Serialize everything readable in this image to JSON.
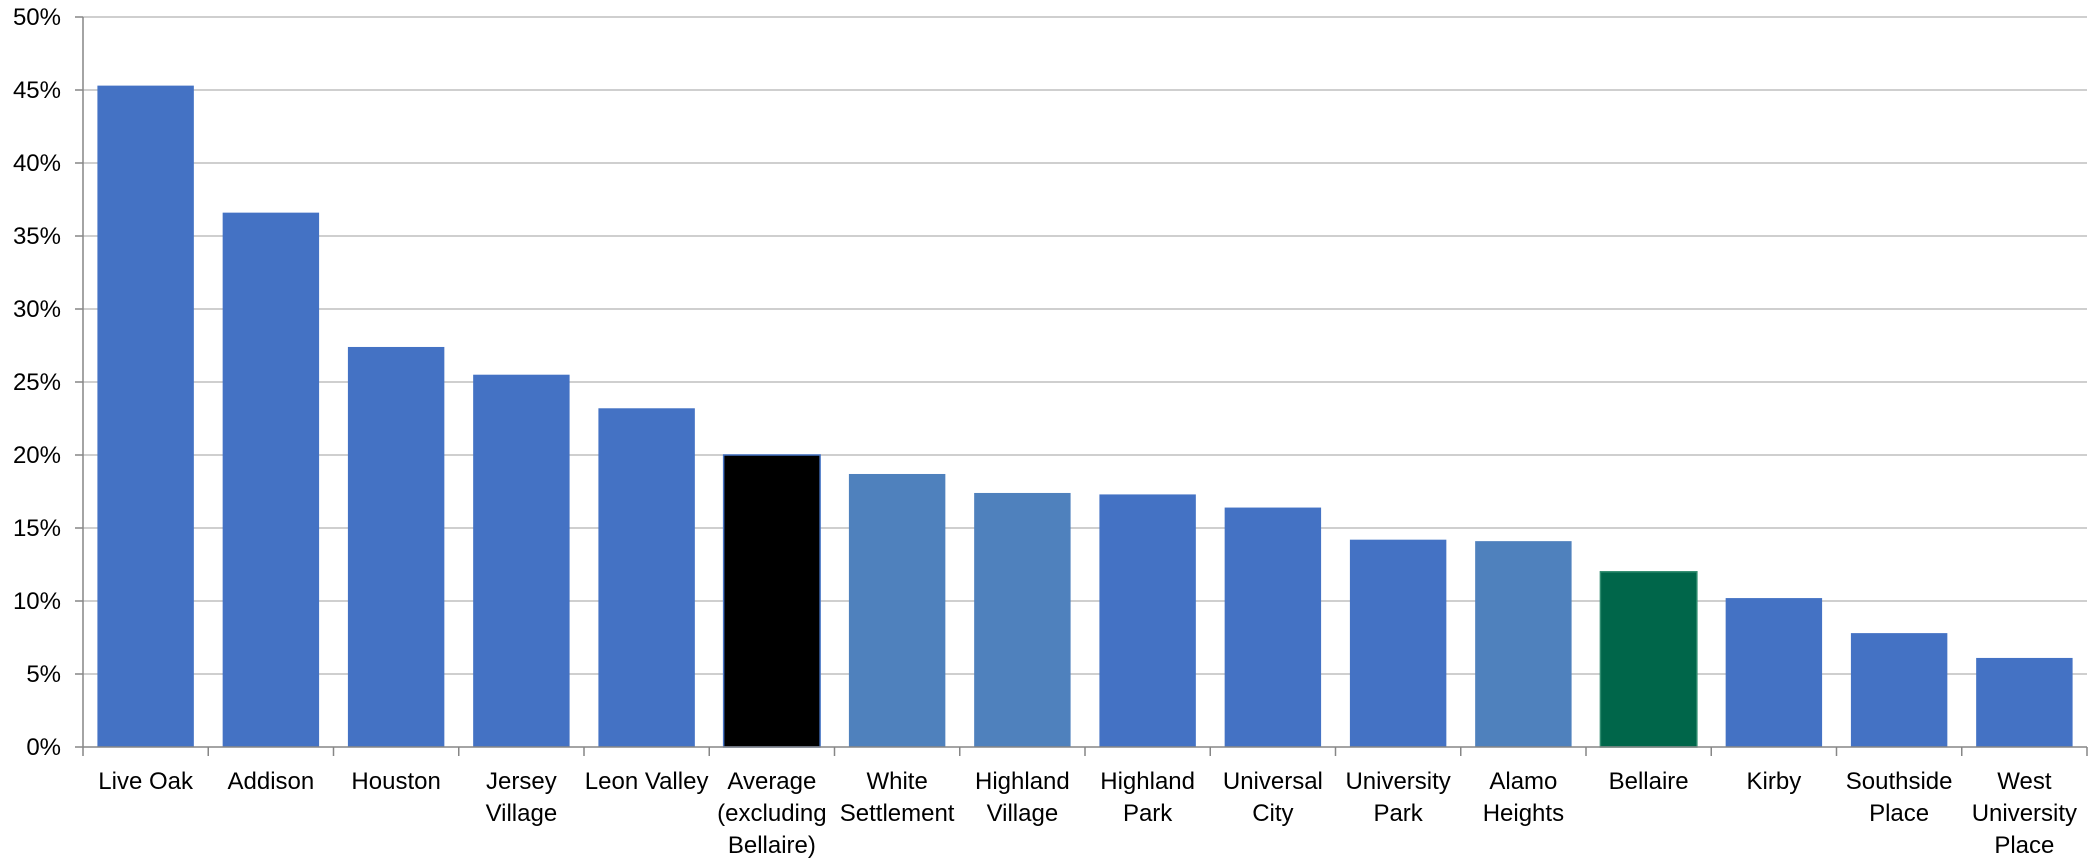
{
  "chart_data": {
    "type": "bar",
    "title": "",
    "xlabel": "",
    "ylabel": "",
    "ylim": [
      0,
      50
    ],
    "y_tick_values": [
      0,
      5,
      10,
      15,
      20,
      25,
      30,
      35,
      40,
      45,
      50
    ],
    "y_tick_labels": [
      "0%",
      "5%",
      "10%",
      "15%",
      "20%",
      "25%",
      "30%",
      "35%",
      "40%",
      "45%",
      "50%"
    ],
    "grid": true,
    "legend": "none",
    "categories": [
      "Live Oak",
      "Addison",
      "Houston",
      "Jersey Village",
      "Leon Valley",
      "Average (excluding Bellaire)",
      "White Settlement",
      "Highland Village",
      "Highland Park",
      "Universal City",
      "University Park",
      "Alamo Heights",
      "Bellaire",
      "Kirby",
      "Southside Place",
      "West University Place"
    ],
    "category_lines": [
      [
        "Live Oak"
      ],
      [
        "Addison"
      ],
      [
        "Houston"
      ],
      [
        "Jersey",
        "Village"
      ],
      [
        "Leon Valley"
      ],
      [
        "Average",
        "(excluding",
        "Bellaire)"
      ],
      [
        "White",
        "Settlement"
      ],
      [
        "Highland",
        "Village"
      ],
      [
        "Highland",
        "Park"
      ],
      [
        "Universal",
        "City"
      ],
      [
        "University",
        "Park"
      ],
      [
        "Alamo",
        "Heights"
      ],
      [
        "Bellaire"
      ],
      [
        "Kirby"
      ],
      [
        "Southside",
        "Place"
      ],
      [
        "West",
        "University",
        "Place"
      ]
    ],
    "values": [
      45.3,
      36.6,
      27.4,
      25.5,
      23.2,
      20.0,
      18.7,
      17.4,
      17.3,
      16.4,
      14.2,
      14.1,
      12.0,
      10.2,
      7.8,
      6.1
    ],
    "colors": [
      "#4472c4",
      "#4472c4",
      "#4472c4",
      "#4472c4",
      "#4472c4",
      "#000000",
      "#4f81bd",
      "#4f81bd",
      "#4472c4",
      "#4472c4",
      "#4472c4",
      "#4f81bd",
      "#00664a",
      "#4472c4",
      "#4472c4",
      "#4472c4"
    ]
  }
}
